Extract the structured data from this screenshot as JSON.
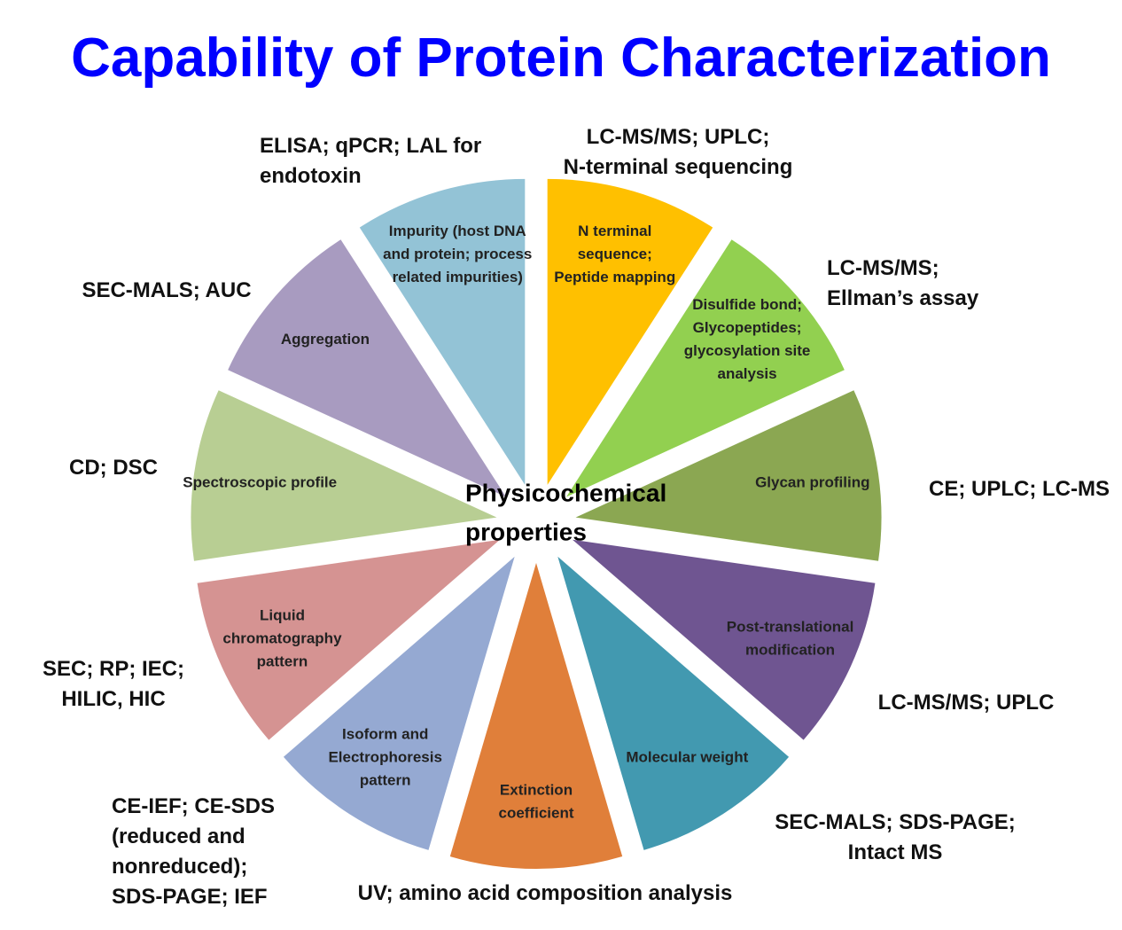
{
  "title": "Capability of Protein Characterization",
  "center_label": [
    "Physicochemical",
    "properties"
  ],
  "segments": [
    {
      "label": [
        "N terminal",
        "sequence;",
        "Peptide mapping"
      ],
      "methods": [
        "LC-MS/MS; UPLC;",
        "N-terminal sequencing"
      ]
    },
    {
      "label": [
        "Disulfide bond;",
        "Glycopeptides;",
        "glycosylation site",
        "analysis"
      ],
      "methods": [
        "LC-MS/MS;",
        "Ellman’s assay"
      ]
    },
    {
      "label": [
        "Glycan profiling"
      ],
      "methods": [
        "CE; UPLC; LC-MS"
      ]
    },
    {
      "label": [
        "Post-translational",
        "modification"
      ],
      "methods": [
        "LC-MS/MS; UPLC"
      ]
    },
    {
      "label": [
        "Molecular weight"
      ],
      "methods": [
        "SEC-MALS; SDS-PAGE;",
        "Intact MS"
      ]
    },
    {
      "label": [
        "Extinction",
        "coefficient"
      ],
      "methods": [
        "UV; amino acid composition analysis"
      ]
    },
    {
      "label": [
        "Isoform and",
        "Electrophoresis",
        "pattern"
      ],
      "methods": [
        "CE-IEF; CE-SDS",
        "(reduced and",
        "nonreduced);",
        "SDS-PAGE; IEF"
      ]
    },
    {
      "label": [
        "Liquid",
        "chromatography",
        "pattern"
      ],
      "methods": [
        "SEC; RP; IEC;",
        "HILIC, HIC"
      ]
    },
    {
      "label": [
        "Spectroscopic profile"
      ],
      "methods": [
        "CD; DSC"
      ]
    },
    {
      "label": [
        "Aggregation"
      ],
      "methods": [
        "SEC-MALS; AUC"
      ]
    },
    {
      "label": [
        "Impurity (host DNA",
        "and protein; process",
        "related impurities)"
      ],
      "methods": [
        "ELISA; qPCR; LAL for",
        "endotoxin"
      ]
    }
  ]
}
